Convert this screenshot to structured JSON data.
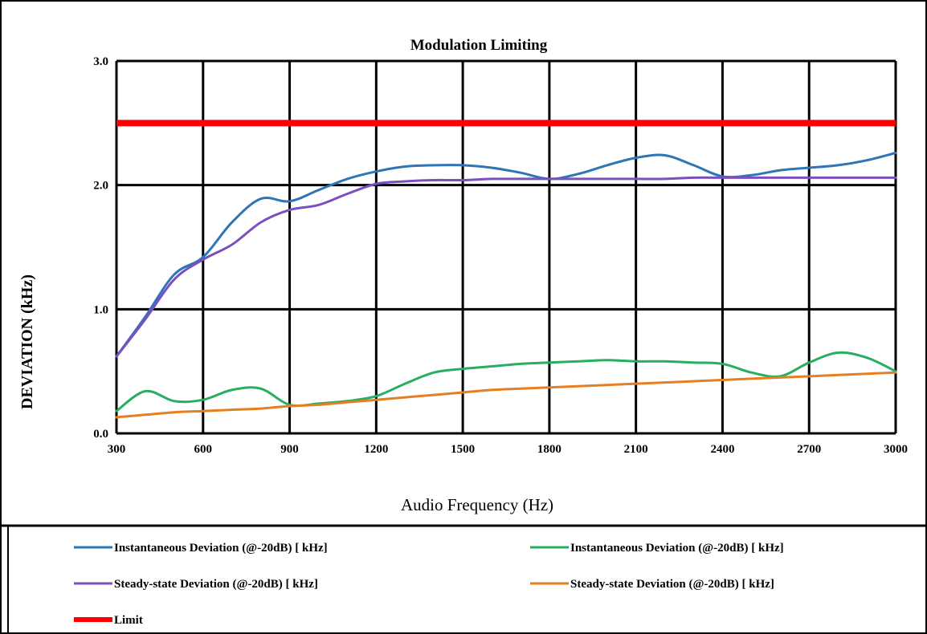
{
  "chart_data": {
    "type": "line",
    "title": "Modulation Limiting",
    "xlabel": "Audio Frequency (Hz)",
    "ylabel": "DEVIATION (kHz)",
    "xlim": [
      300,
      3000
    ],
    "ylim": [
      0.0,
      3.0
    ],
    "x_ticks": [
      "300",
      "600",
      "900",
      "1200",
      "1500",
      "1800",
      "2100",
      "2400",
      "2700",
      "3000"
    ],
    "y_ticks": [
      "0.0",
      "1.0",
      "2.0",
      "3.0"
    ],
    "grid": true,
    "legend_position": "bottom",
    "series": [
      {
        "name": "Instantaneous Deviation (@-20dB) [ kHz]",
        "color": "#2e75b6",
        "x": [
          300,
          400,
          500,
          600,
          700,
          800,
          900,
          1000,
          1100,
          1200,
          1300,
          1400,
          1500,
          1600,
          1700,
          1800,
          1900,
          2000,
          2100,
          2200,
          2300,
          2400,
          2500,
          2600,
          2700,
          2800,
          2900,
          3000
        ],
        "y": [
          0.62,
          0.94,
          1.28,
          1.42,
          1.7,
          1.89,
          1.87,
          1.96,
          2.05,
          2.11,
          2.15,
          2.16,
          2.16,
          2.14,
          2.1,
          2.05,
          2.09,
          2.16,
          2.22,
          2.24,
          2.16,
          2.07,
          2.08,
          2.12,
          2.14,
          2.16,
          2.2,
          2.26
        ]
      },
      {
        "name": "Steady-state Deviation (@-20dB) [ kHz]",
        "color": "#7b4fc0",
        "x": [
          300,
          400,
          500,
          600,
          700,
          800,
          900,
          1000,
          1100,
          1200,
          1300,
          1400,
          1500,
          1600,
          1700,
          1800,
          1900,
          2000,
          2100,
          2200,
          2300,
          2400,
          2500,
          2600,
          2700,
          2800,
          2900,
          3000
        ],
        "y": [
          0.62,
          0.92,
          1.24,
          1.4,
          1.52,
          1.7,
          1.8,
          1.84,
          1.93,
          2.01,
          2.03,
          2.04,
          2.04,
          2.05,
          2.05,
          2.05,
          2.05,
          2.05,
          2.05,
          2.05,
          2.06,
          2.06,
          2.06,
          2.06,
          2.06,
          2.06,
          2.06,
          2.06
        ]
      },
      {
        "name": "Instantaneous Deviation (@-20dB) [ kHz]",
        "color": "#27ae60",
        "x": [
          300,
          400,
          500,
          600,
          700,
          800,
          900,
          1000,
          1100,
          1200,
          1300,
          1400,
          1500,
          1600,
          1700,
          1800,
          1900,
          2000,
          2100,
          2200,
          2300,
          2400,
          2500,
          2600,
          2700,
          2800,
          2900,
          3000
        ],
        "y": [
          0.18,
          0.34,
          0.26,
          0.27,
          0.35,
          0.36,
          0.23,
          0.24,
          0.26,
          0.3,
          0.4,
          0.49,
          0.52,
          0.54,
          0.56,
          0.57,
          0.58,
          0.59,
          0.58,
          0.58,
          0.57,
          0.56,
          0.49,
          0.46,
          0.57,
          0.65,
          0.61,
          0.5
        ]
      },
      {
        "name": "Steady-state Deviation (@-20dB) [ kHz]",
        "color": "#e67e22",
        "x": [
          300,
          400,
          500,
          600,
          700,
          800,
          900,
          1000,
          1100,
          1200,
          1300,
          1400,
          1500,
          1600,
          1700,
          1800,
          1900,
          2000,
          2100,
          2200,
          2300,
          2400,
          2500,
          2600,
          2700,
          2800,
          2900,
          3000
        ],
        "y": [
          0.13,
          0.15,
          0.17,
          0.18,
          0.19,
          0.2,
          0.22,
          0.23,
          0.25,
          0.27,
          0.29,
          0.31,
          0.33,
          0.35,
          0.36,
          0.37,
          0.38,
          0.39,
          0.4,
          0.41,
          0.42,
          0.43,
          0.44,
          0.45,
          0.46,
          0.47,
          0.48,
          0.49
        ]
      },
      {
        "name": "Limit",
        "color": "#ff0000",
        "x": [
          300,
          3000
        ],
        "y": [
          2.5,
          2.5
        ]
      }
    ]
  }
}
